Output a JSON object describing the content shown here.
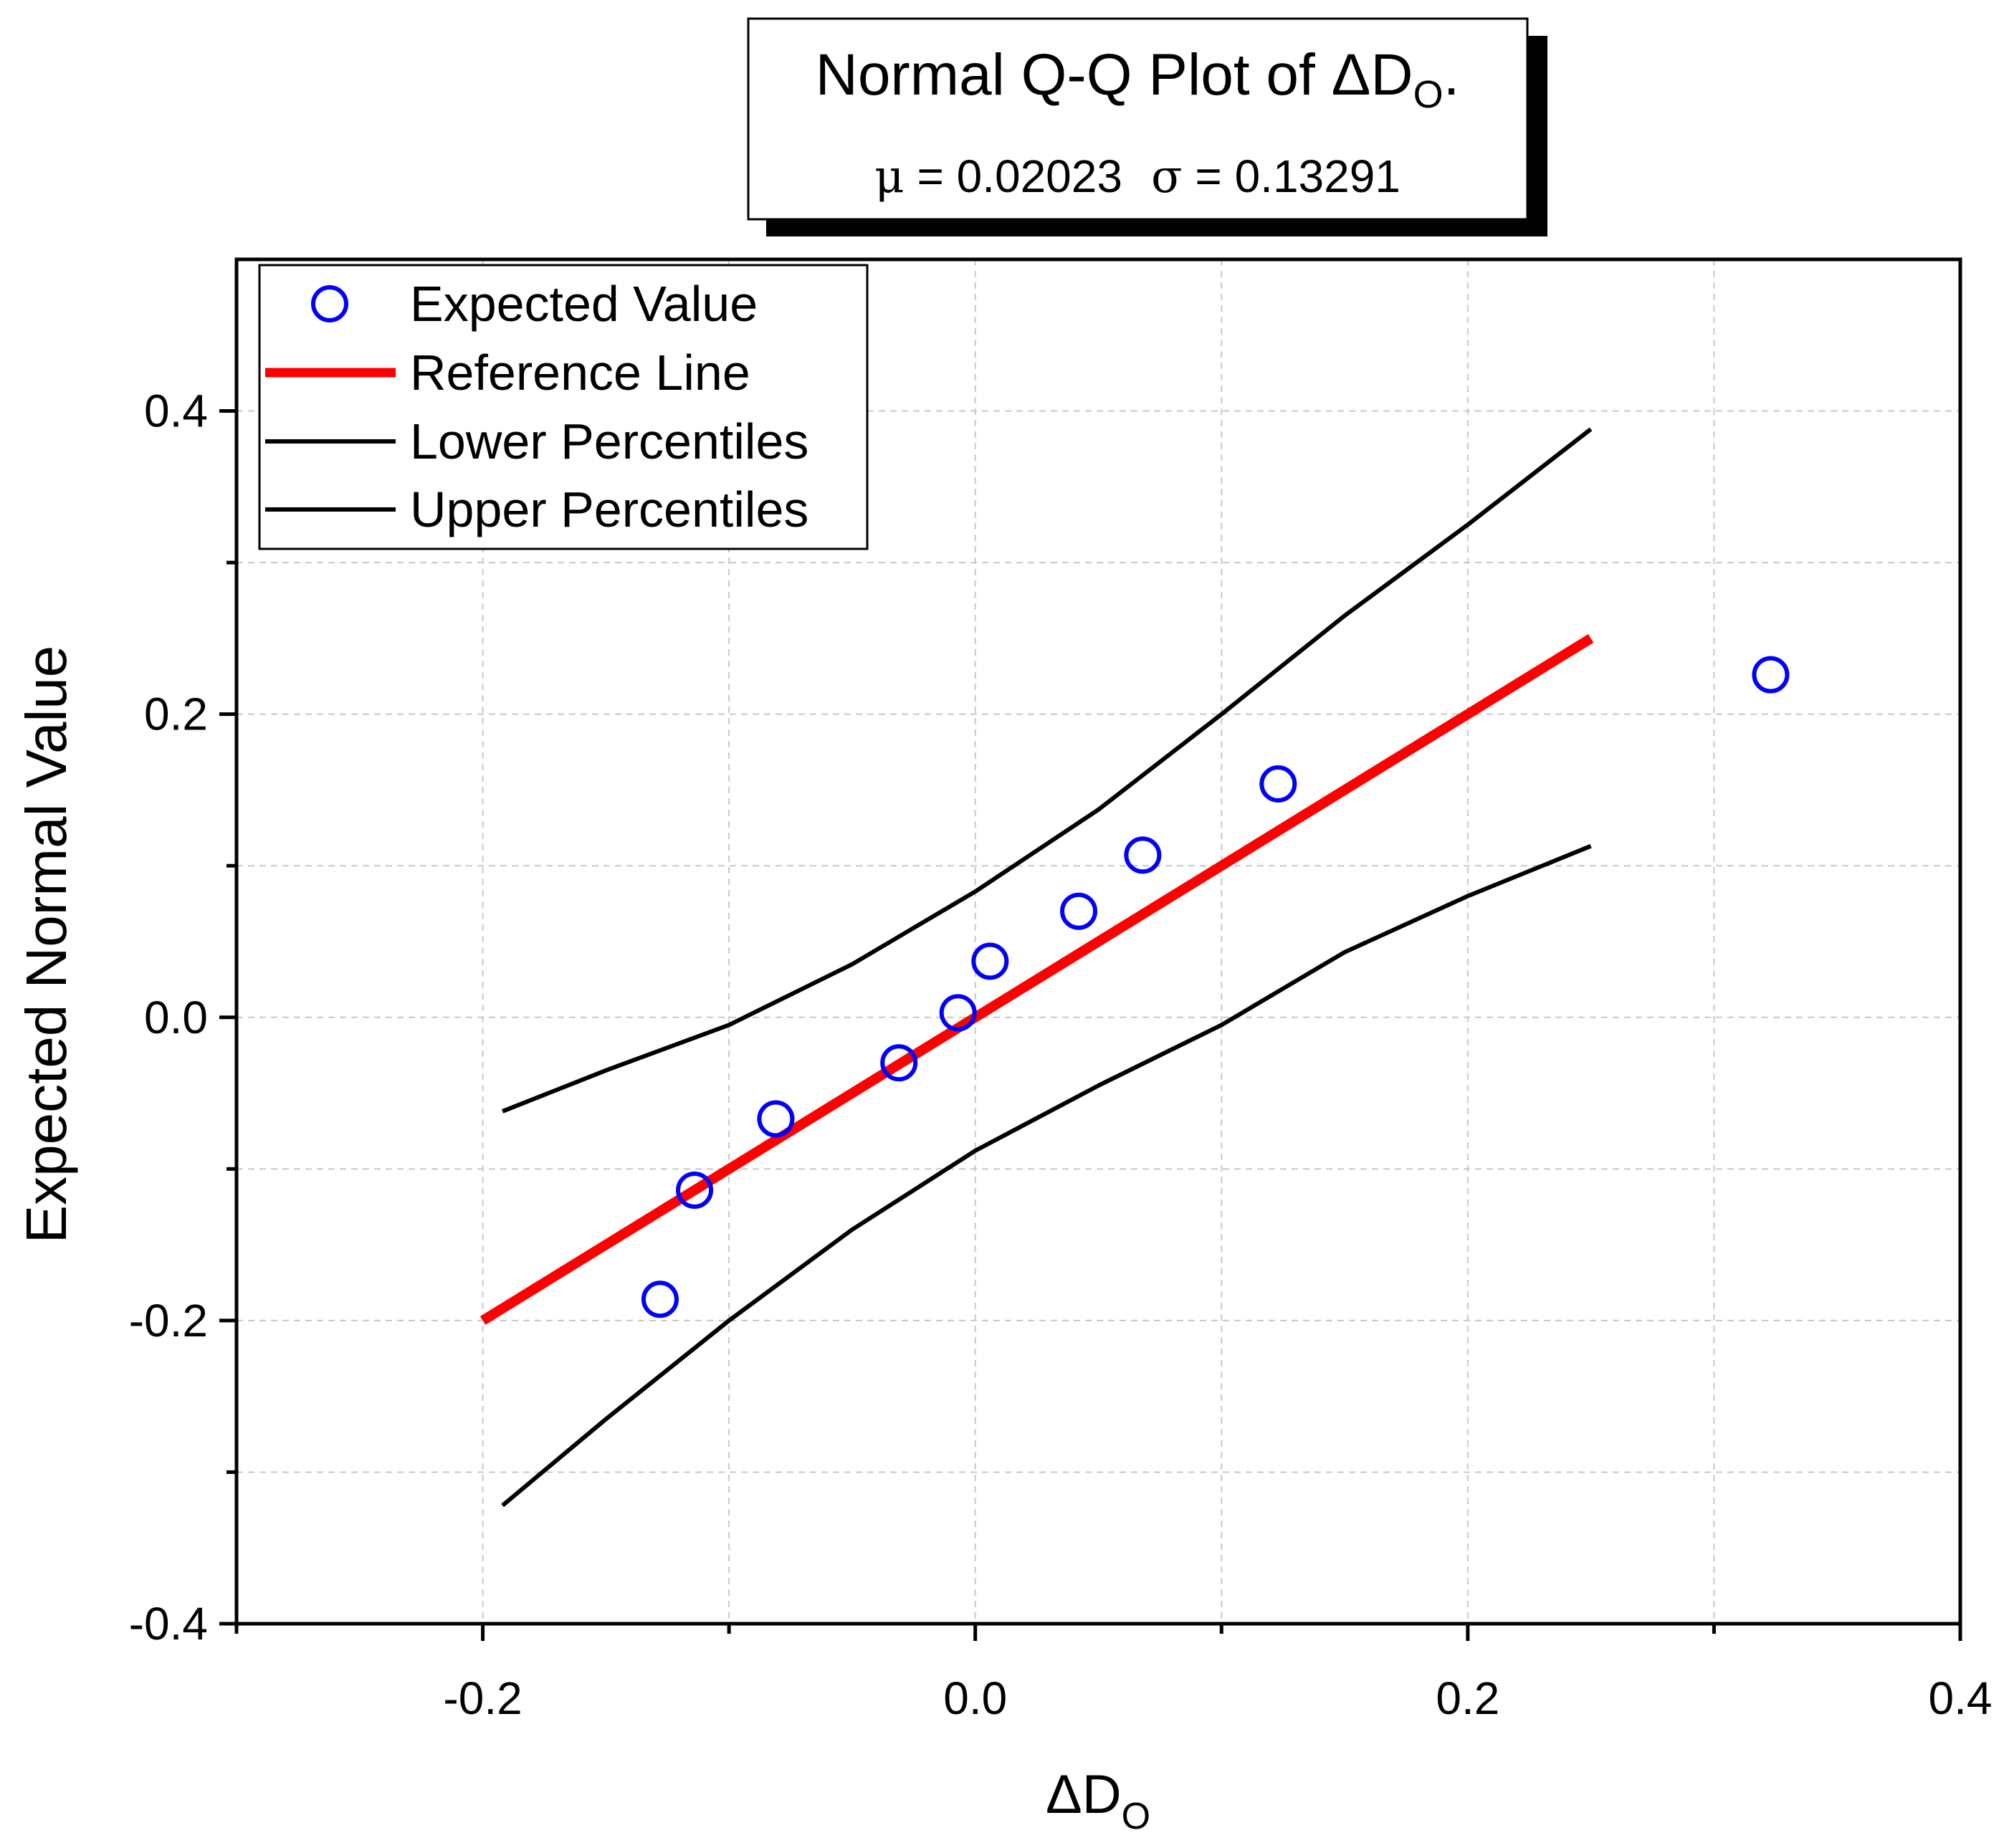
{
  "chart_data": {
    "type": "scatter",
    "title": {
      "main": "Normal Q-Q Plot of ",
      "delta": "Δ",
      "var": "D",
      "sub": "O",
      "end": "."
    },
    "subtitle": {
      "mu_symbol": "μ",
      "mu_text": " = 0.02023",
      "sigma_symbol": "σ",
      "sigma_text": " = 0.13291"
    },
    "xlabel": {
      "delta": "Δ",
      "var": "D",
      "sub": "O"
    },
    "ylabel": "Expected Normal Value",
    "xlim": [
      -0.3,
      0.4
    ],
    "ylim": [
      -0.4,
      0.5
    ],
    "x_ticks": [
      -0.2,
      0.0,
      0.2,
      0.4
    ],
    "x_tick_labels": [
      "-0.2",
      "0.0",
      "0.2",
      "0.4"
    ],
    "x_minor_ticks": [
      -0.3,
      -0.1,
      0.1,
      0.3
    ],
    "y_ticks": [
      -0.4,
      -0.2,
      0.0,
      0.2,
      0.4
    ],
    "y_tick_labels": [
      "-0.4",
      "-0.2",
      "0.0",
      "0.2",
      "0.4"
    ],
    "y_minor_ticks": [
      -0.3,
      -0.1,
      0.1,
      0.3
    ],
    "grid": true,
    "legend": {
      "position": "top-left",
      "entries": [
        {
          "label": "Expected Value",
          "style": "circle",
          "color": "#0000ff"
        },
        {
          "label": "Reference Line",
          "style": "thick-line",
          "color": "#ff0000"
        },
        {
          "label": "Lower Percentiles",
          "style": "line",
          "color": "#000000"
        },
        {
          "label": "Upper Percentiles",
          "style": "line",
          "color": "#000000"
        }
      ]
    },
    "series": [
      {
        "name": "Expected Value",
        "kind": "scatter",
        "color": "#0000ff",
        "points": [
          [
            -0.128,
            -0.186
          ],
          [
            -0.114,
            -0.114
          ],
          [
            -0.081,
            -0.067
          ],
          [
            -0.031,
            -0.03
          ],
          [
            -0.007,
            0.003
          ],
          [
            0.006,
            0.037
          ],
          [
            0.042,
            0.07
          ],
          [
            0.068,
            0.107
          ],
          [
            0.123,
            0.154
          ],
          [
            0.323,
            0.226
          ]
        ]
      },
      {
        "name": "Reference Line",
        "kind": "line",
        "color": "#ff0000",
        "points": [
          [
            -0.2,
            -0.2
          ],
          [
            0.25,
            0.25
          ]
        ]
      },
      {
        "name": "Lower Percentiles",
        "kind": "line",
        "color": "#000000",
        "points": [
          [
            -0.192,
            -0.322
          ],
          [
            -0.15,
            -0.265
          ],
          [
            -0.1,
            -0.2
          ],
          [
            -0.05,
            -0.14
          ],
          [
            0.0,
            -0.088
          ],
          [
            0.05,
            -0.045
          ],
          [
            0.1,
            -0.005
          ],
          [
            0.15,
            0.043
          ],
          [
            0.2,
            0.08
          ],
          [
            0.25,
            0.113
          ]
        ]
      },
      {
        "name": "Upper Percentiles",
        "kind": "line",
        "color": "#000000",
        "points": [
          [
            -0.192,
            -0.062
          ],
          [
            -0.15,
            -0.035
          ],
          [
            -0.1,
            -0.005
          ],
          [
            -0.05,
            0.035
          ],
          [
            0.0,
            0.083
          ],
          [
            0.05,
            0.137
          ],
          [
            0.1,
            0.2
          ],
          [
            0.15,
            0.265
          ],
          [
            0.2,
            0.325
          ],
          [
            0.25,
            0.388
          ]
        ]
      }
    ]
  }
}
